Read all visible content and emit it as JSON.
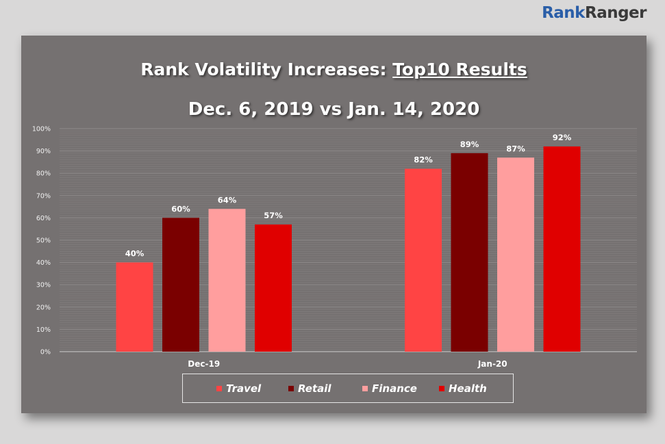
{
  "brand": {
    "part1": "Rank",
    "part2": "Ranger"
  },
  "title": {
    "prefix": "Rank Volatility Increases: ",
    "underlined": "Top10 Results",
    "line2": "Dec. 6, 2019 vs Jan. 14, 2020"
  },
  "chart_data": {
    "type": "bar",
    "categories": [
      "Dec-19",
      "Jan-20"
    ],
    "series": [
      {
        "name": "Travel",
        "color": "#ff4444",
        "values": [
          40,
          82
        ]
      },
      {
        "name": "Retail",
        "color": "#7a0000",
        "values": [
          60,
          89
        ]
      },
      {
        "name": "Finance",
        "color": "#ff9e9e",
        "values": [
          64,
          87
        ]
      },
      {
        "name": "Health",
        "color": "#e00000",
        "values": [
          57,
          92
        ]
      }
    ],
    "value_labels": [
      [
        "40%",
        "82%"
      ],
      [
        "60%",
        "89%"
      ],
      [
        "64%",
        "87%"
      ],
      [
        "57%",
        "92%"
      ]
    ],
    "yticks": [
      "0%",
      "10%",
      "20%",
      "30%",
      "40%",
      "50%",
      "60%",
      "70%",
      "80%",
      "90%",
      "100%"
    ],
    "ylim": [
      0,
      100
    ],
    "grid": true,
    "legend_position": "bottom"
  }
}
